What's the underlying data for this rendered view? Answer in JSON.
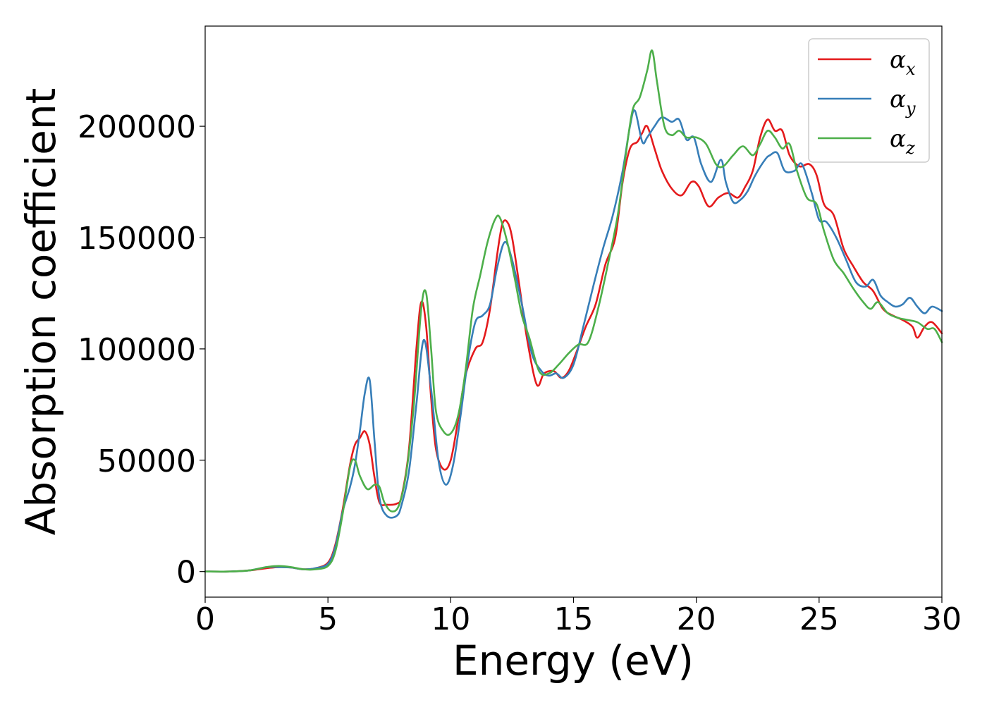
{
  "chart_data": {
    "type": "line",
    "title": "",
    "xlabel": "Energy (eV)",
    "ylabel": "Absorption coefficient",
    "xlim": [
      0,
      30
    ],
    "ylim": [
      -11500,
      245000
    ],
    "xticks": [
      0,
      5,
      10,
      15,
      20,
      25,
      30
    ],
    "yticks": [
      0,
      50000,
      100000,
      150000,
      200000
    ],
    "grid": false,
    "legend_position": "top-right",
    "series": [
      {
        "name": "αx",
        "symbol": "α",
        "subscript": "x",
        "color": "#e41a1c",
        "x": [
          0,
          1,
          1.8,
          2.5,
          3.0,
          3.5,
          4.0,
          4.5,
          5.0,
          5.3,
          5.6,
          5.9,
          6.1,
          6.3,
          6.5,
          6.7,
          6.9,
          7.1,
          7.4,
          7.8,
          8.0,
          8.3,
          8.6,
          8.8,
          9.0,
          9.2,
          9.4,
          9.7,
          10.0,
          10.3,
          10.6,
          11.0,
          11.3,
          11.6,
          11.9,
          12.1,
          12.3,
          12.5,
          12.8,
          13.1,
          13.5,
          13.8,
          14.2,
          14.5,
          14.8,
          15.1,
          15.5,
          15.9,
          16.3,
          16.7,
          17.0,
          17.3,
          17.6,
          17.8,
          18.0,
          18.3,
          18.6,
          19.0,
          19.4,
          19.8,
          20.1,
          20.5,
          20.9,
          21.3,
          21.7,
          22.0,
          22.3,
          22.6,
          22.9,
          23.2,
          23.5,
          23.8,
          24.2,
          24.6,
          24.9,
          25.2,
          25.6,
          26.0,
          26.4,
          26.8,
          27.2,
          27.6,
          28.0,
          28.4,
          28.8,
          29.0,
          29.3,
          29.6,
          30.0
        ],
        "values": [
          0,
          0,
          500,
          1500,
          2000,
          1800,
          1000,
          1500,
          4000,
          12000,
          28000,
          48000,
          57000,
          60000,
          63000,
          57000,
          42000,
          31000,
          30000,
          30500,
          34000,
          55000,
          100000,
          121000,
          110000,
          78000,
          55000,
          46000,
          50000,
          68000,
          88000,
          100000,
          103000,
          118000,
          143000,
          156000,
          157000,
          150000,
          128000,
          105000,
          84000,
          89000,
          90000,
          87000,
          90000,
          98000,
          110000,
          120000,
          138000,
          150000,
          175000,
          190000,
          193000,
          197000,
          200000,
          190000,
          180000,
          172000,
          169000,
          175000,
          173000,
          164000,
          168000,
          170000,
          168000,
          173000,
          180000,
          195000,
          203000,
          198000,
          198000,
          187000,
          182000,
          183000,
          178000,
          165000,
          160000,
          145000,
          137000,
          130000,
          126000,
          118000,
          115000,
          113000,
          110000,
          105000,
          110000,
          112000,
          107000
        ]
      },
      {
        "name": "αy",
        "symbol": "α",
        "subscript": "y",
        "color": "#377eb8",
        "x": [
          0,
          1,
          1.8,
          2.5,
          3.0,
          3.5,
          4.0,
          4.5,
          5.0,
          5.3,
          5.6,
          5.9,
          6.1,
          6.3,
          6.5,
          6.7,
          6.9,
          7.1,
          7.4,
          7.8,
          8.0,
          8.3,
          8.6,
          8.9,
          9.2,
          9.5,
          9.8,
          10.1,
          10.4,
          10.7,
          11.0,
          11.3,
          11.6,
          11.9,
          12.2,
          12.5,
          12.9,
          13.3,
          13.7,
          14.0,
          14.3,
          14.6,
          15.0,
          15.4,
          15.8,
          16.2,
          16.6,
          17.0,
          17.3,
          17.5,
          17.8,
          18.0,
          18.3,
          18.6,
          19.0,
          19.3,
          19.6,
          19.9,
          20.2,
          20.6,
          21.0,
          21.2,
          21.5,
          21.8,
          22.1,
          22.4,
          22.8,
          23.0,
          23.3,
          23.6,
          24.0,
          24.3,
          24.7,
          25.0,
          25.3,
          25.7,
          26.1,
          26.5,
          26.9,
          27.2,
          27.5,
          27.8,
          28.1,
          28.4,
          28.7,
          29.0,
          29.3,
          29.6,
          30.0
        ],
        "values": [
          0,
          0,
          500,
          2000,
          2000,
          1800,
          1000,
          1500,
          3500,
          11000,
          27000,
          38000,
          48000,
          63000,
          80000,
          86000,
          58000,
          33000,
          25000,
          25000,
          30000,
          45000,
          75000,
          104000,
          82000,
          50000,
          39000,
          48000,
          70000,
          95000,
          112000,
          115000,
          120000,
          137000,
          148000,
          140000,
          120000,
          98000,
          90000,
          88000,
          89000,
          87000,
          93000,
          110000,
          128000,
          145000,
          160000,
          180000,
          200000,
          207000,
          193000,
          195000,
          200000,
          204000,
          202000,
          203000,
          194000,
          195000,
          183000,
          175000,
          185000,
          175000,
          166000,
          167000,
          171000,
          178000,
          185000,
          187000,
          188000,
          180000,
          180000,
          183000,
          170000,
          158000,
          157000,
          150000,
          140000,
          130000,
          128000,
          131000,
          124000,
          121000,
          119000,
          120000,
          123000,
          119000,
          116000,
          119000,
          117000
        ]
      },
      {
        "name": "αz",
        "symbol": "α",
        "subscript": "z",
        "color": "#4daf4a",
        "x": [
          0,
          1,
          1.8,
          2.5,
          3.0,
          3.5,
          4.0,
          4.5,
          5.0,
          5.3,
          5.6,
          5.9,
          6.1,
          6.3,
          6.6,
          6.9,
          7.1,
          7.3,
          7.6,
          7.9,
          8.2,
          8.5,
          8.8,
          9.0,
          9.2,
          9.4,
          9.7,
          10.0,
          10.3,
          10.6,
          10.9,
          11.2,
          11.5,
          11.8,
          12.0,
          12.3,
          12.6,
          12.9,
          13.2,
          13.6,
          14.0,
          14.4,
          14.8,
          15.2,
          15.6,
          16.0,
          16.4,
          16.8,
          17.1,
          17.4,
          17.7,
          18.0,
          18.2,
          18.4,
          18.7,
          19.0,
          19.3,
          19.6,
          20.0,
          20.4,
          20.8,
          21.1,
          21.5,
          21.9,
          22.3,
          22.6,
          22.9,
          23.2,
          23.5,
          23.8,
          24.1,
          24.5,
          24.9,
          25.2,
          25.6,
          26.0,
          26.4,
          26.8,
          27.1,
          27.4,
          27.8,
          28.2,
          28.6,
          29.0,
          29.4,
          29.7,
          30.0
        ],
        "values": [
          0,
          0,
          500,
          2000,
          2500,
          2000,
          1000,
          1000,
          2500,
          9000,
          26000,
          47000,
          50000,
          43000,
          37000,
          39000,
          38000,
          31000,
          27000,
          30000,
          45000,
          75000,
          118000,
          125000,
          100000,
          72000,
          63000,
          62000,
          70000,
          90000,
          118000,
          133000,
          148000,
          158000,
          159000,
          148000,
          132000,
          115000,
          105000,
          90000,
          89000,
          93000,
          98000,
          102000,
          103000,
          118000,
          138000,
          160000,
          185000,
          207000,
          213000,
          225000,
          234000,
          220000,
          200000,
          196000,
          198000,
          195000,
          195000,
          192000,
          183000,
          182000,
          187000,
          191000,
          187000,
          192000,
          198000,
          195000,
          190000,
          192000,
          180000,
          168000,
          165000,
          153000,
          140000,
          134000,
          127000,
          121000,
          118000,
          121000,
          116000,
          114000,
          113000,
          112000,
          109000,
          109000,
          103000
        ]
      }
    ]
  }
}
